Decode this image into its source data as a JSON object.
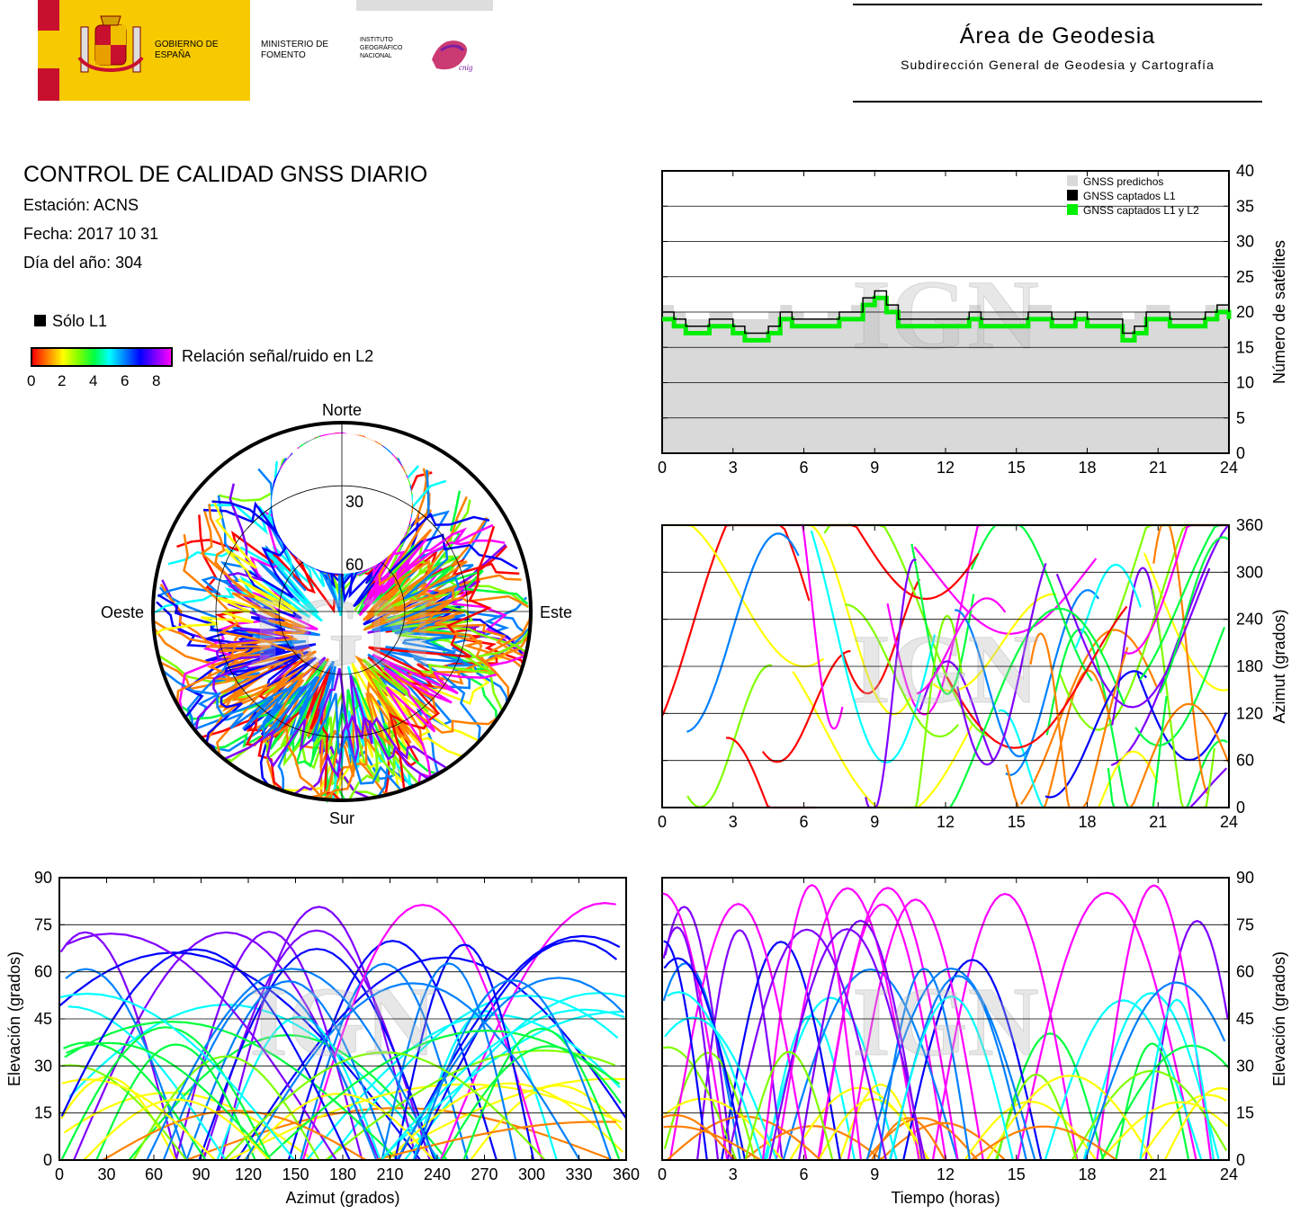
{
  "header": {
    "gobierno": "GOBIERNO DE ESPAÑA",
    "ministerio": "MINISTERIO DE FOMENTO",
    "instituto": "INSTITUTO GEOGRÁFICO NACIONAL",
    "area_title": "Área de Geodesia",
    "area_subtitle": "Subdirección General de Geodesia y Cartografía"
  },
  "info": {
    "title": "CONTROL DE CALIDAD GNSS DIARIO",
    "station": "Estación: ACNS",
    "date": "Fecha: 2017 10 31",
    "doy": "Día del año: 304"
  },
  "legend": {
    "l1_only": "Sólo L1",
    "snr_label": "Relación señal/ruido en L2",
    "ticks": [
      "0",
      "2",
      "4",
      "6",
      "8"
    ]
  },
  "colors": {
    "predicted": "#d9d9d9",
    "l1": "#000000",
    "l1l2": "#00ee00",
    "snr_scale": [
      "#ff0000",
      "#ff8000",
      "#ffff00",
      "#80ff00",
      "#00ff40",
      "#00ffff",
      "#0080ff",
      "#0000ff",
      "#8000ff",
      "#ff00ff"
    ]
  },
  "watermark": "IGN",
  "chart_data": [
    {
      "type": "area",
      "id": "sat-count",
      "x": [
        0,
        0.5,
        1,
        1.5,
        2,
        2.5,
        3,
        3.5,
        4,
        4.5,
        5,
        5.5,
        6,
        6.5,
        7,
        7.5,
        8,
        8.5,
        9,
        9.5,
        10,
        10.5,
        11,
        11.5,
        12,
        12.5,
        13,
        13.5,
        14,
        14.5,
        15,
        15.5,
        16,
        16.5,
        17,
        17.5,
        18,
        18.5,
        19,
        19.5,
        20,
        20.5,
        21,
        21.5,
        22,
        22.5,
        23,
        23.5,
        24
      ],
      "series": [
        {
          "name": "GNSS predichos",
          "values": [
            21,
            20,
            19,
            19,
            20,
            20,
            19,
            19,
            19,
            20,
            21,
            20,
            19,
            19,
            20,
            20,
            21,
            22,
            22,
            21,
            20,
            20,
            20,
            20,
            20,
            20,
            21,
            20,
            20,
            20,
            20,
            21,
            21,
            20,
            20,
            20,
            20,
            20,
            20,
            19,
            20,
            21,
            21,
            20,
            20,
            20,
            21,
            21,
            21
          ]
        },
        {
          "name": "GNSS captados L1",
          "values": [
            20,
            19,
            18,
            18,
            19,
            19,
            18,
            17,
            17,
            18,
            20,
            19,
            19,
            19,
            19,
            20,
            20,
            22,
            23,
            21,
            19,
            19,
            19,
            19,
            19,
            19,
            20,
            19,
            19,
            19,
            19,
            20,
            20,
            19,
            19,
            20,
            19,
            19,
            19,
            17,
            18,
            20,
            20,
            19,
            19,
            19,
            20,
            21,
            20
          ]
        },
        {
          "name": "GNSS captados L1 y L2",
          "values": [
            19,
            18,
            17,
            17,
            18,
            18,
            17,
            16,
            16,
            17,
            19,
            18,
            18,
            18,
            18,
            19,
            19,
            21,
            22,
            20,
            18,
            18,
            18,
            18,
            18,
            18,
            19,
            18,
            18,
            18,
            18,
            19,
            19,
            18,
            18,
            19,
            18,
            18,
            18,
            16,
            17,
            19,
            19,
            18,
            18,
            18,
            19,
            20,
            19
          ]
        }
      ],
      "xlim": [
        0,
        24
      ],
      "ylim": [
        0,
        40
      ],
      "xticks": [
        "0",
        "3",
        "6",
        "9",
        "12",
        "15",
        "18",
        "21",
        "24"
      ],
      "yticks": [
        "0",
        "5",
        "10",
        "15",
        "20",
        "25",
        "30",
        "35",
        "40"
      ],
      "ylabel": "Número de satélites",
      "legend": "top-right"
    },
    {
      "type": "scatter",
      "id": "skyplot",
      "labels": {
        "north": "Norte",
        "south": "Sur",
        "west": "Oeste",
        "east": "Este"
      },
      "rings": [
        "30",
        "60"
      ]
    },
    {
      "type": "scatter",
      "id": "azimuth-time",
      "xlim": [
        0,
        24
      ],
      "ylim": [
        0,
        360
      ],
      "xticks": [
        "0",
        "3",
        "6",
        "9",
        "12",
        "15",
        "18",
        "21",
        "24"
      ],
      "yticks": [
        "0",
        "60",
        "120",
        "180",
        "240",
        "300",
        "360"
      ],
      "ylabel": "Azimut (grados)"
    },
    {
      "type": "scatter",
      "id": "elev-azimuth",
      "xlim": [
        0,
        360
      ],
      "ylim": [
        0,
        90
      ],
      "xticks": [
        "0",
        "30",
        "60",
        "90",
        "120",
        "150",
        "180",
        "210",
        "240",
        "270",
        "300",
        "330",
        "360"
      ],
      "yticks": [
        "0",
        "15",
        "30",
        "45",
        "60",
        "75",
        "90"
      ],
      "xlabel": "Azimut (grados)",
      "ylabel": "Elevación (grados)"
    },
    {
      "type": "scatter",
      "id": "elev-time",
      "xlim": [
        0,
        24
      ],
      "ylim": [
        0,
        90
      ],
      "xticks": [
        "0",
        "3",
        "6",
        "9",
        "12",
        "15",
        "18",
        "21",
        "24"
      ],
      "yticks": [
        "0",
        "15",
        "30",
        "45",
        "60",
        "75",
        "90"
      ],
      "xlabel": "Tiempo (horas)",
      "ylabel": "Elevación (grados)"
    }
  ]
}
